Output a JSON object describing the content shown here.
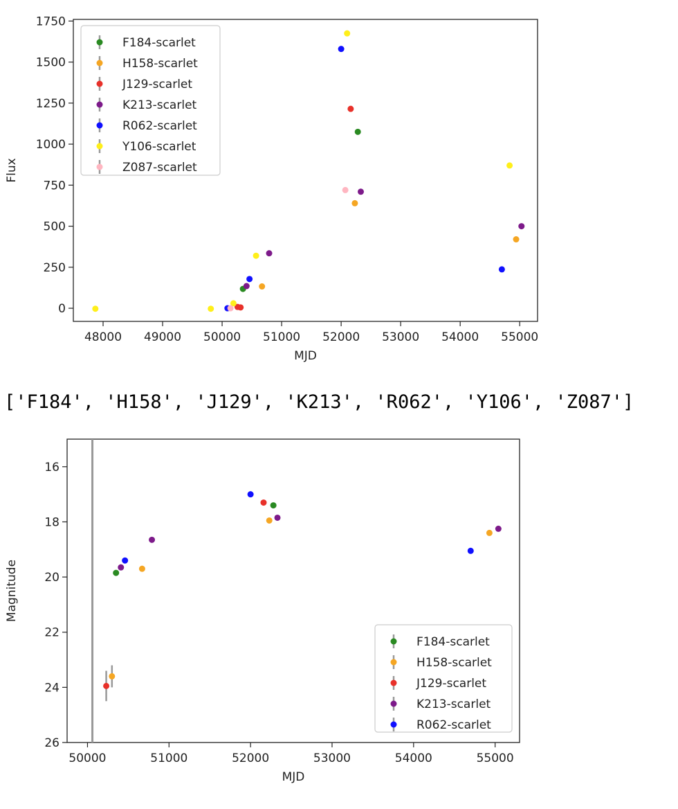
{
  "output_text": "['F184', 'H158', 'J129', 'K213', 'R062', 'Y106', 'Z087']",
  "chart_data": [
    {
      "type": "scatter",
      "xlabel": "MJD",
      "ylabel": "Flux",
      "xlim": [
        47500,
        55300
      ],
      "ylim": [
        -80,
        1760
      ],
      "xticks": [
        48000,
        49000,
        50000,
        51000,
        52000,
        53000,
        54000,
        55000
      ],
      "yticks": [
        0,
        250,
        500,
        750,
        1000,
        1250,
        1500,
        1750
      ],
      "inverted_y": false,
      "legend_position": "top-left",
      "series": [
        {
          "name": "F184-scarlet",
          "color": "#2a8a22",
          "points": [
            [
              50350,
              118
            ],
            [
              52280,
              1075
            ]
          ]
        },
        {
          "name": "H158-scarlet",
          "color": "#f5a623",
          "points": [
            [
              50670,
              133
            ],
            [
              52230,
              640
            ],
            [
              54940,
              420
            ]
          ]
        },
        {
          "name": "J129-scarlet",
          "color": "#e8312a",
          "points": [
            [
              50260,
              8
            ],
            [
              50310,
              5
            ],
            [
              52160,
              1215
            ]
          ]
        },
        {
          "name": "K213-scarlet",
          "color": "#7d1a8a",
          "points": [
            [
              50410,
              135
            ],
            [
              50790,
              335
            ],
            [
              52330,
              710
            ],
            [
              55030,
              500
            ]
          ]
        },
        {
          "name": "R062-scarlet",
          "color": "#1010ff",
          "points": [
            [
              50090,
              0
            ],
            [
              50460,
              178
            ],
            [
              52000,
              1580
            ],
            [
              54700,
              237
            ]
          ]
        },
        {
          "name": "Y106-scarlet",
          "color": "#ffef1a",
          "points": [
            [
              47870,
              -3
            ],
            [
              49810,
              -3
            ],
            [
              50190,
              30
            ],
            [
              50570,
              320
            ],
            [
              52100,
              1675
            ],
            [
              54830,
              870
            ]
          ]
        },
        {
          "name": "Z087-scarlet",
          "color": "#ffb6c1",
          "points": [
            [
              50140,
              0
            ],
            [
              52070,
              720
            ]
          ]
        }
      ]
    },
    {
      "type": "scatter",
      "xlabel": "MJD",
      "ylabel": "Magnitude",
      "xlim": [
        49750,
        55300
      ],
      "ylim": [
        15,
        26
      ],
      "xticks": [
        50000,
        51000,
        52000,
        53000,
        54000,
        55000
      ],
      "yticks": [
        16,
        18,
        20,
        22,
        24,
        26
      ],
      "inverted_y": true,
      "vline_x": 50060,
      "legend_position": "lower-right",
      "series": [
        {
          "name": "F184-scarlet",
          "color": "#2a8a22",
          "points": [
            [
              50350,
              19.85
            ],
            [
              52280,
              17.4
            ]
          ],
          "err": [
            0,
            0
          ]
        },
        {
          "name": "H158-scarlet",
          "color": "#f5a623",
          "points": [
            [
              50300,
              23.6
            ],
            [
              50670,
              19.7
            ],
            [
              52230,
              17.95
            ],
            [
              54930,
              18.4
            ]
          ],
          "err": [
            0.4,
            0,
            0,
            0
          ]
        },
        {
          "name": "J129-scarlet",
          "color": "#e8312a",
          "points": [
            [
              50230,
              23.95
            ],
            [
              52160,
              17.3
            ]
          ],
          "err": [
            0.55,
            0
          ]
        },
        {
          "name": "K213-scarlet",
          "color": "#7d1a8a",
          "points": [
            [
              50410,
              19.65
            ],
            [
              50790,
              18.65
            ],
            [
              52330,
              17.85
            ],
            [
              55040,
              18.25
            ]
          ],
          "err": [
            0,
            0,
            0,
            0
          ]
        },
        {
          "name": "R062-scarlet",
          "color": "#1010ff",
          "points": [
            [
              50460,
              19.4
            ],
            [
              52000,
              17.0
            ],
            [
              54700,
              19.05
            ]
          ],
          "err": [
            0,
            0,
            0
          ]
        }
      ]
    }
  ]
}
